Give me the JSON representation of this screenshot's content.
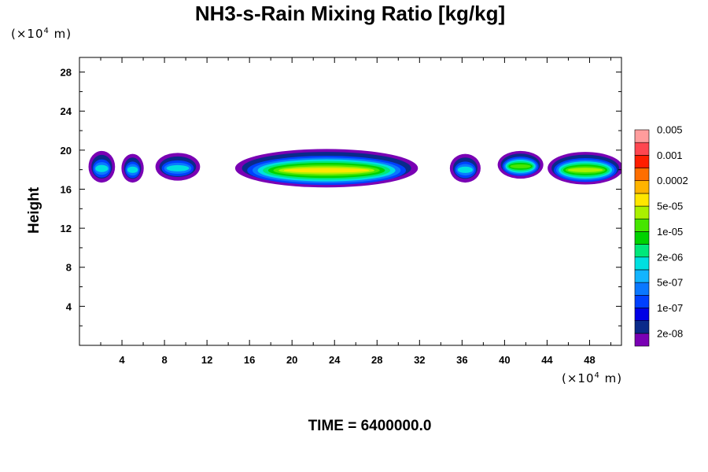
{
  "chart_data": {
    "type": "contour",
    "title": "NH3-s-Rain Mixing Ratio [kg/kg]",
    "ylabel": "Height",
    "xlabel": "",
    "x_unit": "(×10⁴ m)",
    "y_unit": "(×10⁴ m)",
    "unit_base": "(×10",
    "unit_exp": "4",
    "unit_suffix": " m)",
    "footer": "TIME = 6400000.0",
    "xlim": [
      0,
      51
    ],
    "ylim": [
      0,
      29.5
    ],
    "x_ticks": [
      4,
      8,
      12,
      16,
      20,
      24,
      28,
      32,
      36,
      40,
      44,
      48
    ],
    "y_ticks": [
      4,
      8,
      12,
      16,
      20,
      24,
      28
    ],
    "colorbar": {
      "colors": [
        "#7a00b4",
        "#0a2a8a",
        "#0000e6",
        "#0040ff",
        "#0a78ff",
        "#12b4ff",
        "#00e0e0",
        "#00e87a",
        "#00d200",
        "#46e600",
        "#aaf000",
        "#ffe600",
        "#ffb400",
        "#ff6e00",
        "#ff1e00",
        "#ff4650",
        "#ff9c9c"
      ],
      "labels": [
        "2e-08",
        "1e-07",
        "5e-07",
        "2e-06",
        "1e-05",
        "5e-05",
        "0.0002",
        "0.001",
        "0.005"
      ]
    },
    "features": [
      {
        "x_range": [
          1.0,
          3.2
        ],
        "y_range": [
          16.8,
          19.8
        ],
        "peak_level": 4
      },
      {
        "x_range": [
          4.1,
          5.9
        ],
        "y_range": [
          16.8,
          19.5
        ],
        "peak_level": 4
      },
      {
        "x_range": [
          7.3,
          11.2
        ],
        "y_range": [
          17.0,
          19.6
        ],
        "peak_level": 4
      },
      {
        "x_range": [
          14.8,
          31.7
        ],
        "y_range": [
          16.3,
          20.0
        ],
        "peak_level": 9
      },
      {
        "x_range": [
          35.0,
          37.6
        ],
        "y_range": [
          16.8,
          19.5
        ],
        "peak_level": 4
      },
      {
        "x_range": [
          39.5,
          43.5
        ],
        "y_range": [
          17.2,
          19.8
        ],
        "peak_level": 7
      },
      {
        "x_range": [
          44.2,
          51.0
        ],
        "y_range": [
          16.6,
          19.7
        ],
        "peak_level": 8
      }
    ]
  }
}
